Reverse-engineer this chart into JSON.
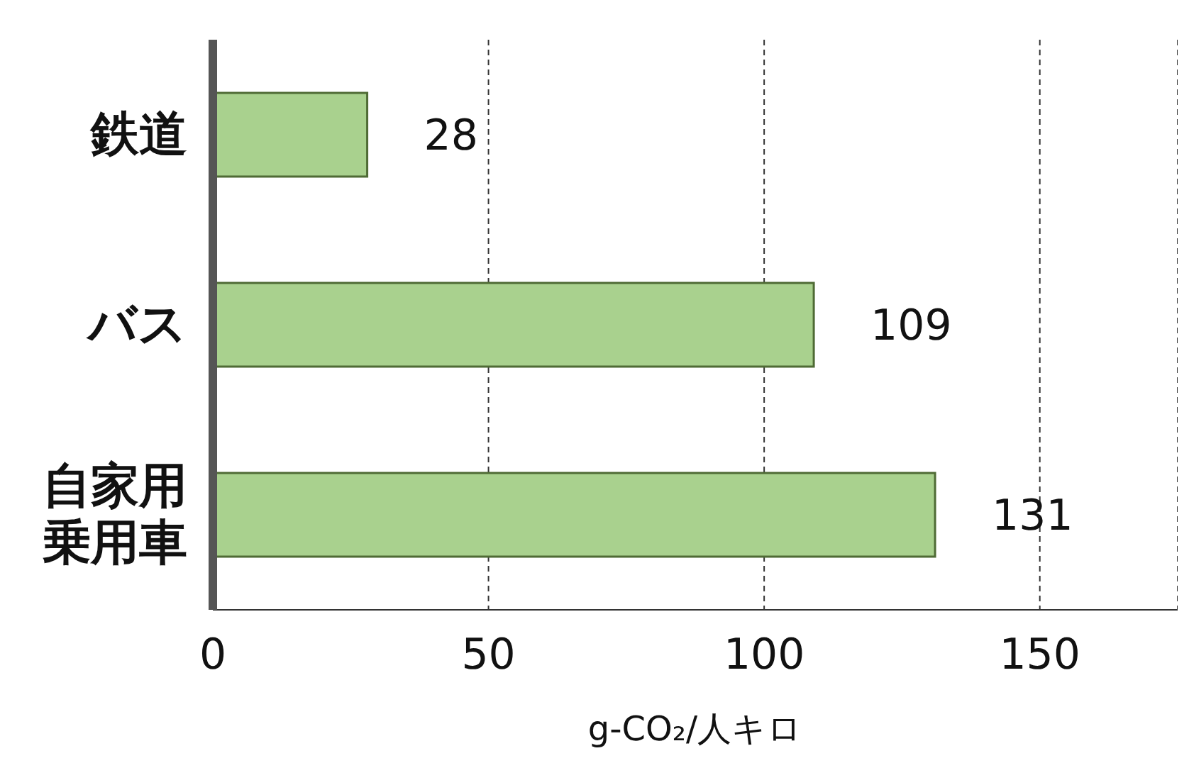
{
  "chart_data": {
    "type": "bar",
    "orientation": "horizontal",
    "categories": [
      "鉄道",
      "バス",
      "自家用乗用車"
    ],
    "values": [
      28,
      109,
      131
    ],
    "color": "#a9d18e",
    "xlim": [
      0,
      175
    ],
    "xticks": [
      0,
      50,
      100,
      150
    ],
    "xlabel": "g-CO₂/人キロ",
    "grid": "x",
    "data_labels": true
  }
}
